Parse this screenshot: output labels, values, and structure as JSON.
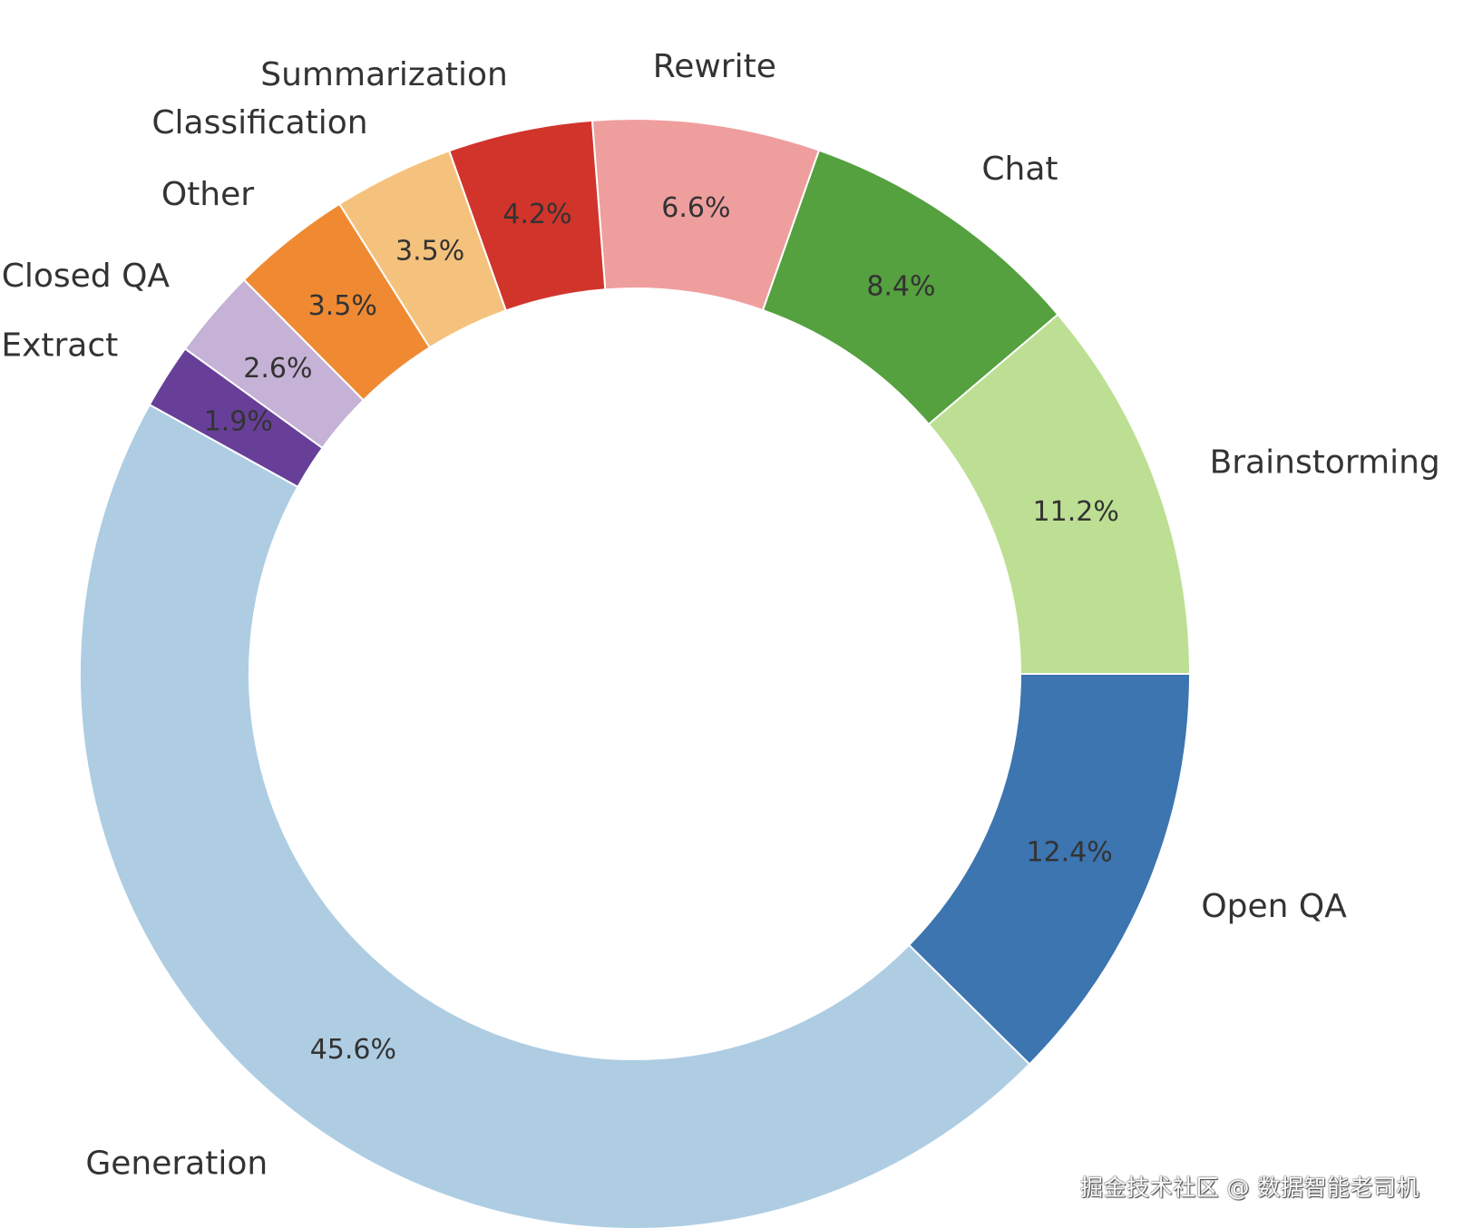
{
  "chart_data": {
    "type": "pie",
    "donut": true,
    "start_angle_deg": 0,
    "direction": "counterclockwise",
    "slices": [
      {
        "label": "Brainstorming",
        "value": 11.2,
        "pct_text": "11.2%",
        "color": "#bddf93"
      },
      {
        "label": "Chat",
        "value": 8.4,
        "pct_text": "8.4%",
        "color": "#55a03f"
      },
      {
        "label": "Rewrite",
        "value": 6.6,
        "pct_text": "6.6%",
        "color": "#ef9e9e"
      },
      {
        "label": "Summarization",
        "value": 4.2,
        "pct_text": "4.2%",
        "color": "#d1342b"
      },
      {
        "label": "Classification",
        "value": 3.5,
        "pct_text": "3.5%",
        "color": "#f5c27d"
      },
      {
        "label": "Other",
        "value": 3.5,
        "pct_text": "3.5%",
        "color": "#ef8a33"
      },
      {
        "label": "Closed QA",
        "value": 2.6,
        "pct_text": "2.6%",
        "color": "#c5b2d6"
      },
      {
        "label": "Extract",
        "value": 1.9,
        "pct_text": "1.9%",
        "color": "#673f98"
      },
      {
        "label": "Generation",
        "value": 45.6,
        "pct_text": "45.6%",
        "color": "#aecde3"
      },
      {
        "label": "Open QA",
        "value": 12.4,
        "pct_text": "12.4%",
        "color": "#3c75b0"
      }
    ]
  },
  "watermark": "掘金技术社区 @ 数据智能老司机"
}
